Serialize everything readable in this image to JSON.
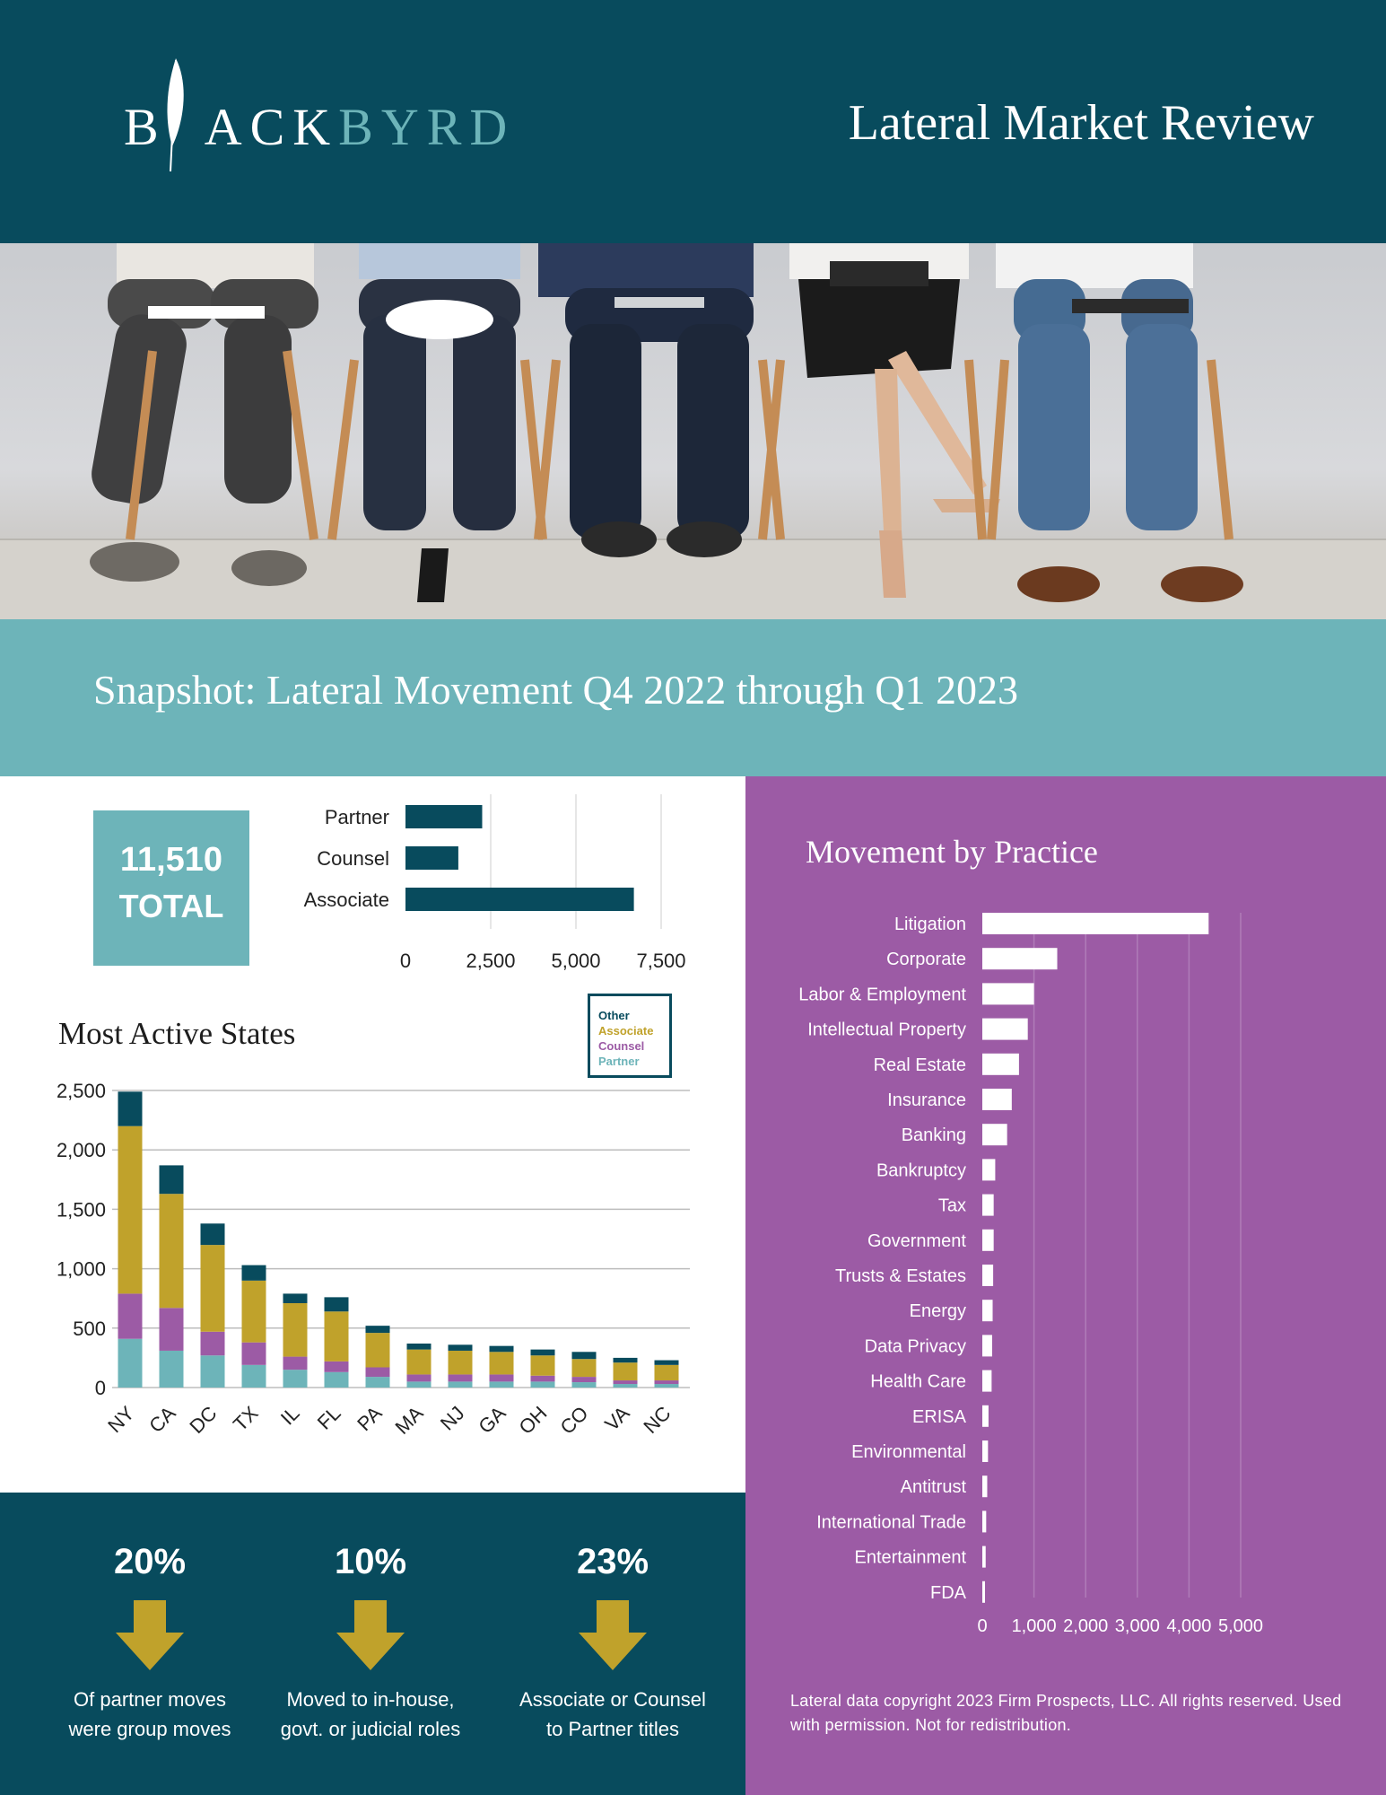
{
  "header": {
    "logo_text_b": "B",
    "logo_text_ack": "ACK",
    "logo_text_byrd": "BYRD",
    "title": "Lateral Market Review"
  },
  "snapshot": {
    "title": "Snapshot: Lateral Movement Q4 2022 through Q1 2023"
  },
  "total": {
    "value": "11,510",
    "label": "TOTAL"
  },
  "colors": {
    "navy": "#084b5d",
    "teal": "#6db4b9",
    "gold": "#c0a22b",
    "purple": "#9c5ba5",
    "white": "#ffffff"
  },
  "chart_data": [
    {
      "id": "role",
      "type": "bar",
      "orientation": "horizontal",
      "categories": [
        "Partner",
        "Counsel",
        "Associate"
      ],
      "values": [
        2250,
        1550,
        6700
      ],
      "xlim": [
        0,
        7500
      ],
      "xticks": [
        "0",
        "2,500",
        "5,000",
        "7,500"
      ],
      "grid": true
    },
    {
      "id": "states",
      "type": "bar",
      "stacked": true,
      "title": "Most Active States",
      "categories": [
        "NY",
        "CA",
        "DC",
        "TX",
        "IL",
        "FL",
        "PA",
        "MA",
        "NJ",
        "GA",
        "OH",
        "CO",
        "VA",
        "NC"
      ],
      "series": [
        {
          "name": "Partner",
          "color": "#6db4b9",
          "values": [
            410,
            310,
            270,
            190,
            150,
            130,
            90,
            50,
            50,
            50,
            50,
            45,
            30,
            30
          ]
        },
        {
          "name": "Counsel",
          "color": "#9c5ba5",
          "values": [
            380,
            360,
            200,
            190,
            110,
            90,
            80,
            60,
            60,
            60,
            50,
            45,
            30,
            30
          ]
        },
        {
          "name": "Associate",
          "color": "#c0a22b",
          "values": [
            1410,
            960,
            730,
            520,
            450,
            420,
            290,
            210,
            200,
            190,
            170,
            150,
            150,
            130
          ]
        },
        {
          "name": "Other",
          "color": "#084b5d",
          "values": [
            290,
            240,
            180,
            130,
            80,
            120,
            60,
            50,
            50,
            50,
            50,
            60,
            40,
            40
          ]
        }
      ],
      "ylim": [
        0,
        2500
      ],
      "yticks": [
        "2,500",
        "2,000",
        "1,500",
        "1,000",
        "500",
        "0"
      ],
      "legend": {
        "position": "top-right",
        "items": [
          "Other",
          "Associate",
          "Counsel",
          "Partner"
        ]
      },
      "grid": true
    },
    {
      "id": "practice",
      "type": "bar",
      "orientation": "horizontal",
      "title": "Movement by Practice",
      "categories": [
        "Litigation",
        "Corporate",
        "Labor & Employment",
        "Intellectual Property",
        "Real Estate",
        "Insurance",
        "Banking",
        "Bankruptcy",
        "Tax",
        "Government",
        "Trusts & Estates",
        "Energy",
        "Data Privacy",
        "Health Care",
        "ERISA",
        "Environmental",
        "Antitrust",
        "International Trade",
        "Entertainment",
        "FDA"
      ],
      "values": [
        4380,
        1450,
        1000,
        880,
        710,
        570,
        480,
        250,
        220,
        220,
        210,
        200,
        190,
        180,
        120,
        110,
        95,
        75,
        65,
        45
      ],
      "xlim": [
        0,
        5000
      ],
      "xticks": [
        "0",
        "1,000",
        "2,000",
        "3,000",
        "4,000",
        "5,000"
      ],
      "grid": true
    }
  ],
  "stats": [
    {
      "pct": "20%",
      "line1": "Of partner moves",
      "line2": "were group moves"
    },
    {
      "pct": "10%",
      "line1": "Moved to in-house,",
      "line2": "govt. or judicial roles"
    },
    {
      "pct": "23%",
      "line1": "Associate or Counsel",
      "line2": "to Partner titles"
    }
  ],
  "copyright": "Lateral data copyright 2023 Firm Prospects, LLC. All rights reserved. Used with permission. Not for redistribution."
}
